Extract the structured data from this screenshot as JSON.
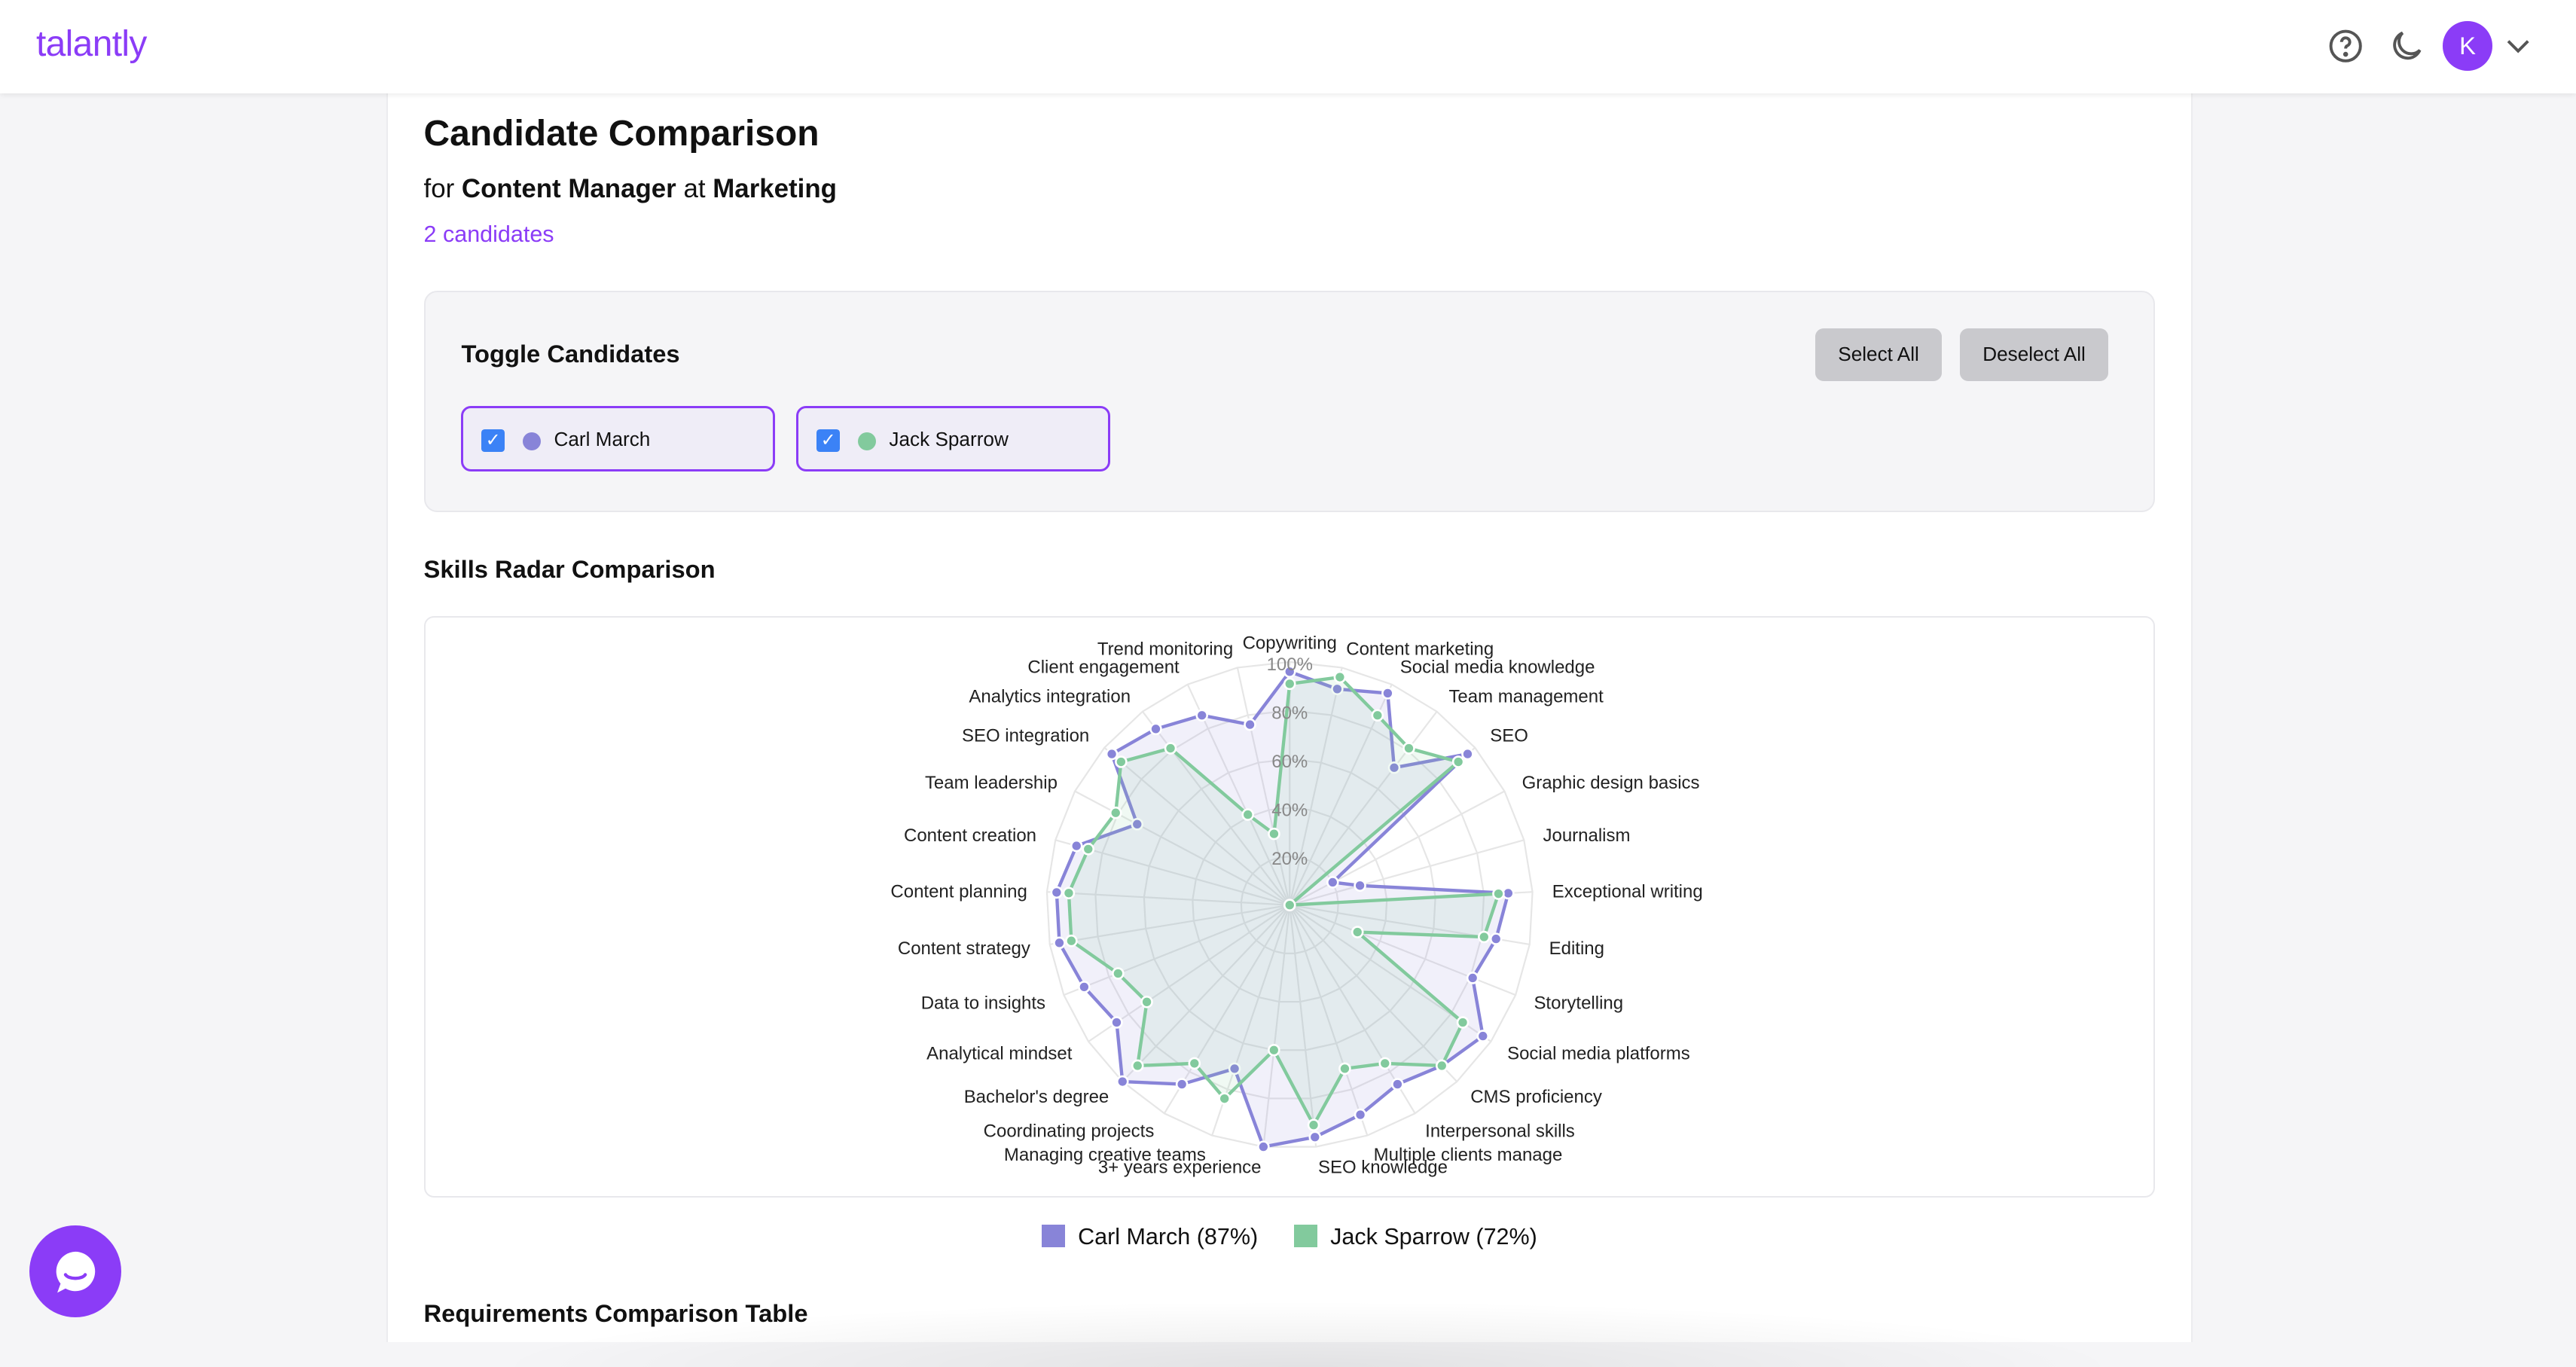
{
  "header": {
    "logo": "talantly",
    "avatar_initial": "K",
    "icons": [
      "help-circle-icon",
      "moon-icon",
      "chevron-down-icon"
    ]
  },
  "page": {
    "title": "Candidate Comparison",
    "subtitle_prefix": "for",
    "role": "Content Manager",
    "subtitle_mid": "at",
    "department": "Marketing",
    "count": "2 candidates"
  },
  "toggle": {
    "title": "Toggle Candidates",
    "select_all": "Select All",
    "deselect_all": "Deselect All",
    "candidates": [
      {
        "name": "Carl March",
        "checked": true,
        "color": "#8884d8"
      },
      {
        "name": "Jack Sparrow",
        "checked": true,
        "color": "#82ca9d"
      }
    ]
  },
  "radar_section": {
    "title": "Skills Radar Comparison"
  },
  "table_section": {
    "title": "Requirements Comparison Table"
  },
  "chart_data": {
    "type": "radar",
    "categories": [
      "Copywriting",
      "Content marketing",
      "Social media knowledge",
      "Team management",
      "SEO",
      "Graphic design basics",
      "Journalism",
      "Exceptional writing",
      "Editing",
      "Storytelling",
      "Social media platforms",
      "CMS proficiency",
      "Interpersonal skills",
      "Multiple clients manage",
      "SEO knowledge",
      "3+ years experience",
      "Managing creative teams",
      "Coordinating projects",
      "Bachelor's degree",
      "Analytical mindset",
      "Data to insights",
      "Content strategy",
      "Content planning",
      "Content creation",
      "Team leadership",
      "SEO integration",
      "Analytics integration",
      "Client engagement",
      "Trend monitoring"
    ],
    "radial_ticks": [
      "20%",
      "40%",
      "60%",
      "80%",
      "100%"
    ],
    "range": [
      0,
      100
    ],
    "grid": true,
    "legend_placement": "bottom",
    "series": [
      {
        "name": "Carl March (87%)",
        "color": "#8884d8",
        "values": [
          96,
          91,
          96,
          71,
          96,
          20,
          30,
          90,
          86,
          81,
          96,
          91,
          86,
          91,
          96,
          100,
          71,
          86,
          100,
          86,
          91,
          96,
          96,
          91,
          71,
          96,
          91,
          86,
          76
        ]
      },
      {
        "name": "Jack Sparrow (72%)",
        "color": "#82ca9d",
        "values": [
          91,
          96,
          86,
          81,
          91,
          0,
          0,
          86,
          81,
          30,
          86,
          91,
          76,
          71,
          91,
          60,
          84,
          76,
          91,
          71,
          76,
          91,
          91,
          86,
          81,
          91,
          81,
          41,
          30
        ]
      }
    ]
  }
}
